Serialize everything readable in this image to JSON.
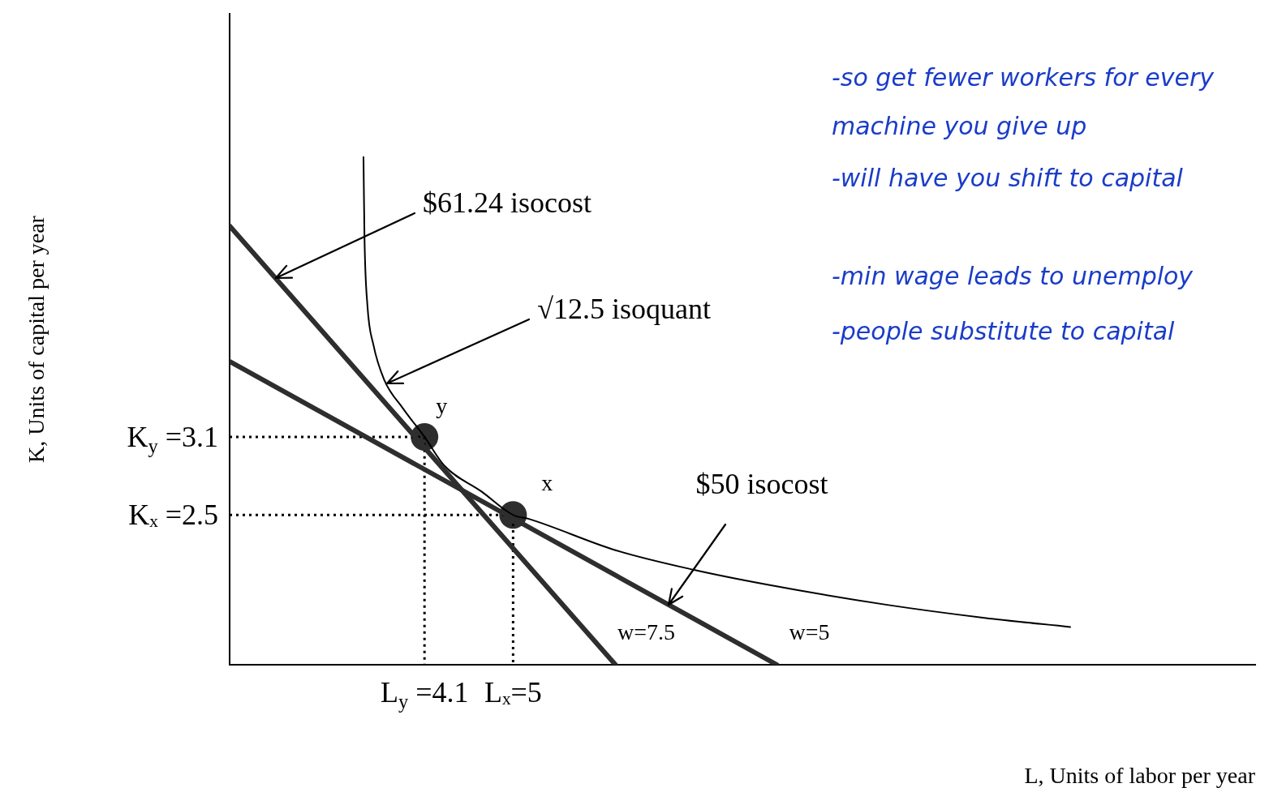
{
  "chart_data": {
    "type": "line",
    "xlabel": "L, Units of labor per year",
    "ylabel": "K, Units of capital per year",
    "xlim": [
      2.12,
      12.54
    ],
    "ylim": [
      1.35,
      6.35
    ],
    "xticks": [
      {
        "value": 4.1,
        "label": "L$_{y}$ =4.1"
      },
      {
        "value": 5,
        "label": "Lₓ=5"
      }
    ],
    "yticks": [
      {
        "value": 3.1,
        "label": "K$_{y}$ =3.1"
      },
      {
        "value": 2.5,
        "label": "Kₓ =2.5"
      }
    ],
    "grid": false,
    "legend": false,
    "marker": "none",
    "line_style": "solid",
    "series": [
      {
        "color": "#2e2e2e",
        "x": [
          2.12,
          6.04
        ],
        "values": [
          4.72,
          1.35
        ]
      },
      {
        "color": "#2e2e2e",
        "x": [
          2.12,
          7.68
        ],
        "values": [
          3.68,
          1.35
        ]
      },
      {
        "color": "#000000",
        "x": [
          3.48,
          3.49,
          3.52,
          3.58,
          3.69,
          3.88,
          4.1,
          4.3,
          4.68,
          5,
          5.16,
          6.04,
          6.83,
          7.62,
          8.8,
          9.79,
          10.66
        ],
        "values": [
          5.25,
          4.64,
          4.11,
          3.81,
          3.54,
          3.32,
          3.1,
          2.88,
          2.68,
          2.5,
          2.47,
          2.23,
          2.08,
          1.96,
          1.81,
          1.71,
          1.64
        ]
      },
      {
        "color": "#000000",
        "x": [
          2.12,
          4.1,
          4.1
        ],
        "values": [
          3.1,
          3.1,
          1.35
        ],
        "line_style": "dotted"
      },
      {
        "color": "#000000",
        "x": [
          2.12,
          5,
          5
        ],
        "values": [
          2.5,
          2.5,
          1.35
        ],
        "line_style": "dotted"
      },
      {
        "type": "scatter",
        "color": "#2e2e2e",
        "x": [
          4.1,
          5
        ],
        "values": [
          3.1,
          2.5
        ],
        "marker": "circle"
      }
    ],
    "annotations": [
      {
        "text": "$61.24 isocost",
        "x": 2.59,
        "y": 4.32
      },
      {
        "text": "√12.5 isoquant",
        "x": 3.72,
        "y": 3.51
      },
      {
        "text": "$50 isocost",
        "x": 6.58,
        "y": 1.81
      },
      {
        "text": "y",
        "x": 4.1,
        "y": 3.1
      },
      {
        "text": "x",
        "x": 5,
        "y": 2.5
      },
      {
        "text": "w=7.5",
        "x": 6.04,
        "y": 1.35
      },
      {
        "text": "w=5",
        "x": 7.68,
        "y": 1.35
      },
      "-so get fewer workers for every machine you give up",
      "-will have you shift to capital",
      "-min wage leads to unemploy",
      "-people substitute to capital"
    ]
  }
}
